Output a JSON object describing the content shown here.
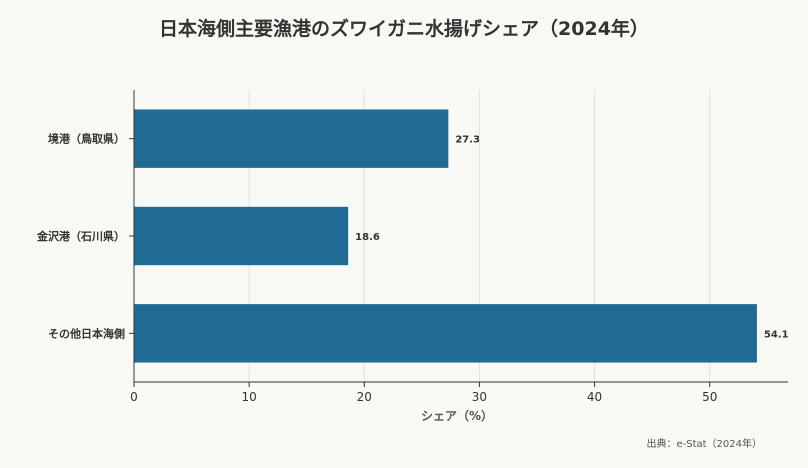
{
  "chart_data": {
    "type": "bar",
    "orientation": "horizontal",
    "title": "日本海側主要漁港のズワイガニ水揚げシェア（2024年）",
    "categories": [
      "境港（鳥取県）",
      "金沢港（石川県）",
      "その他日本海側"
    ],
    "values": [
      27.3,
      18.6,
      54.1
    ],
    "value_labels": [
      "27.3",
      "18.6",
      "54.1"
    ],
    "xlabel": "シェア（%）",
    "ylabel": "",
    "xlim": [
      0,
      56.8
    ],
    "xticks": [
      0,
      10,
      20,
      30,
      40,
      50
    ],
    "xtick_labels": [
      "0",
      "10",
      "20",
      "30",
      "40",
      "50"
    ],
    "grid": "vertical",
    "bar_color": "#1f6b93",
    "source": "出典：e-Stat（2024年）"
  }
}
